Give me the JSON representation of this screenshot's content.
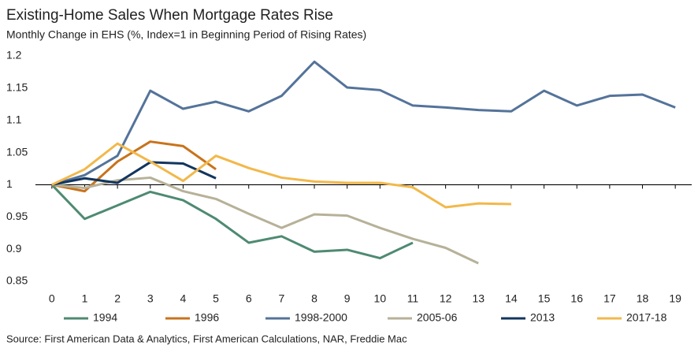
{
  "chart_data": {
    "type": "line",
    "title": "Existing-Home Sales When Mortgage Rates Rise",
    "subtitle": "Monthly Change in EHS (%, Index=1 in Beginning Period of Rising Rates)",
    "source": "Source: First American Data & Analytics, First American Calculations, NAR, Freddie Mac",
    "x": [
      0,
      1,
      2,
      3,
      4,
      5,
      6,
      7,
      8,
      9,
      10,
      11,
      12,
      13,
      14,
      15,
      16,
      17,
      18,
      19
    ],
    "xlim": [
      -0.5,
      19.5
    ],
    "xticks": [
      0,
      1,
      2,
      3,
      4,
      5,
      6,
      7,
      8,
      9,
      10,
      11,
      12,
      13,
      14,
      15,
      16,
      17,
      18,
      19
    ],
    "ylim": [
      0.85,
      1.2
    ],
    "yticks": [
      0.85,
      0.9,
      0.95,
      1,
      1.05,
      1.1,
      1.15,
      1.2
    ],
    "x_axis_crosses": 1,
    "legend": "bottom",
    "series": [
      {
        "name": "1994",
        "color": "#4e8a72",
        "values": [
          1,
          0.947,
          0.968,
          0.989,
          0.976,
          0.947,
          0.91,
          0.92,
          0.896,
          0.899,
          0.886,
          0.91,
          null,
          null,
          null,
          null,
          null,
          null,
          null,
          null
        ]
      },
      {
        "name": "1996",
        "color": "#c8731c",
        "values": [
          1,
          0.99,
          1.036,
          1.067,
          1.06,
          1.024,
          null,
          null,
          null,
          null,
          null,
          null,
          null,
          null,
          null,
          null,
          null,
          null,
          null,
          null
        ]
      },
      {
        "name": "1998-2000",
        "color": "#54739a",
        "values": [
          1,
          1.015,
          1.045,
          1.146,
          1.118,
          1.129,
          1.114,
          1.138,
          1.191,
          1.151,
          1.147,
          1.123,
          1.12,
          1.116,
          1.114,
          1.146,
          1.123,
          1.138,
          1.14,
          1.12
        ]
      },
      {
        "name": "2005-06",
        "color": "#b6b198",
        "values": [
          1,
          0.995,
          1.007,
          1.011,
          0.99,
          0.978,
          0.955,
          0.933,
          0.954,
          0.952,
          0.933,
          0.916,
          0.902,
          0.878,
          null,
          null,
          null,
          null,
          null,
          null
        ]
      },
      {
        "name": "2013",
        "color": "#12355e",
        "values": [
          1,
          1.01,
          1.003,
          1.035,
          1.033,
          1.01,
          null,
          null,
          null,
          null,
          null,
          null,
          null,
          null,
          null,
          null,
          null,
          null,
          null,
          null
        ]
      },
      {
        "name": "2017-18",
        "color": "#f2b84b",
        "values": [
          1,
          1.024,
          1.064,
          1.036,
          1.006,
          1.045,
          1.026,
          1.011,
          1.005,
          1.003,
          1.003,
          0.996,
          0.965,
          0.971,
          0.97,
          null,
          null,
          null,
          null,
          null
        ]
      }
    ]
  }
}
